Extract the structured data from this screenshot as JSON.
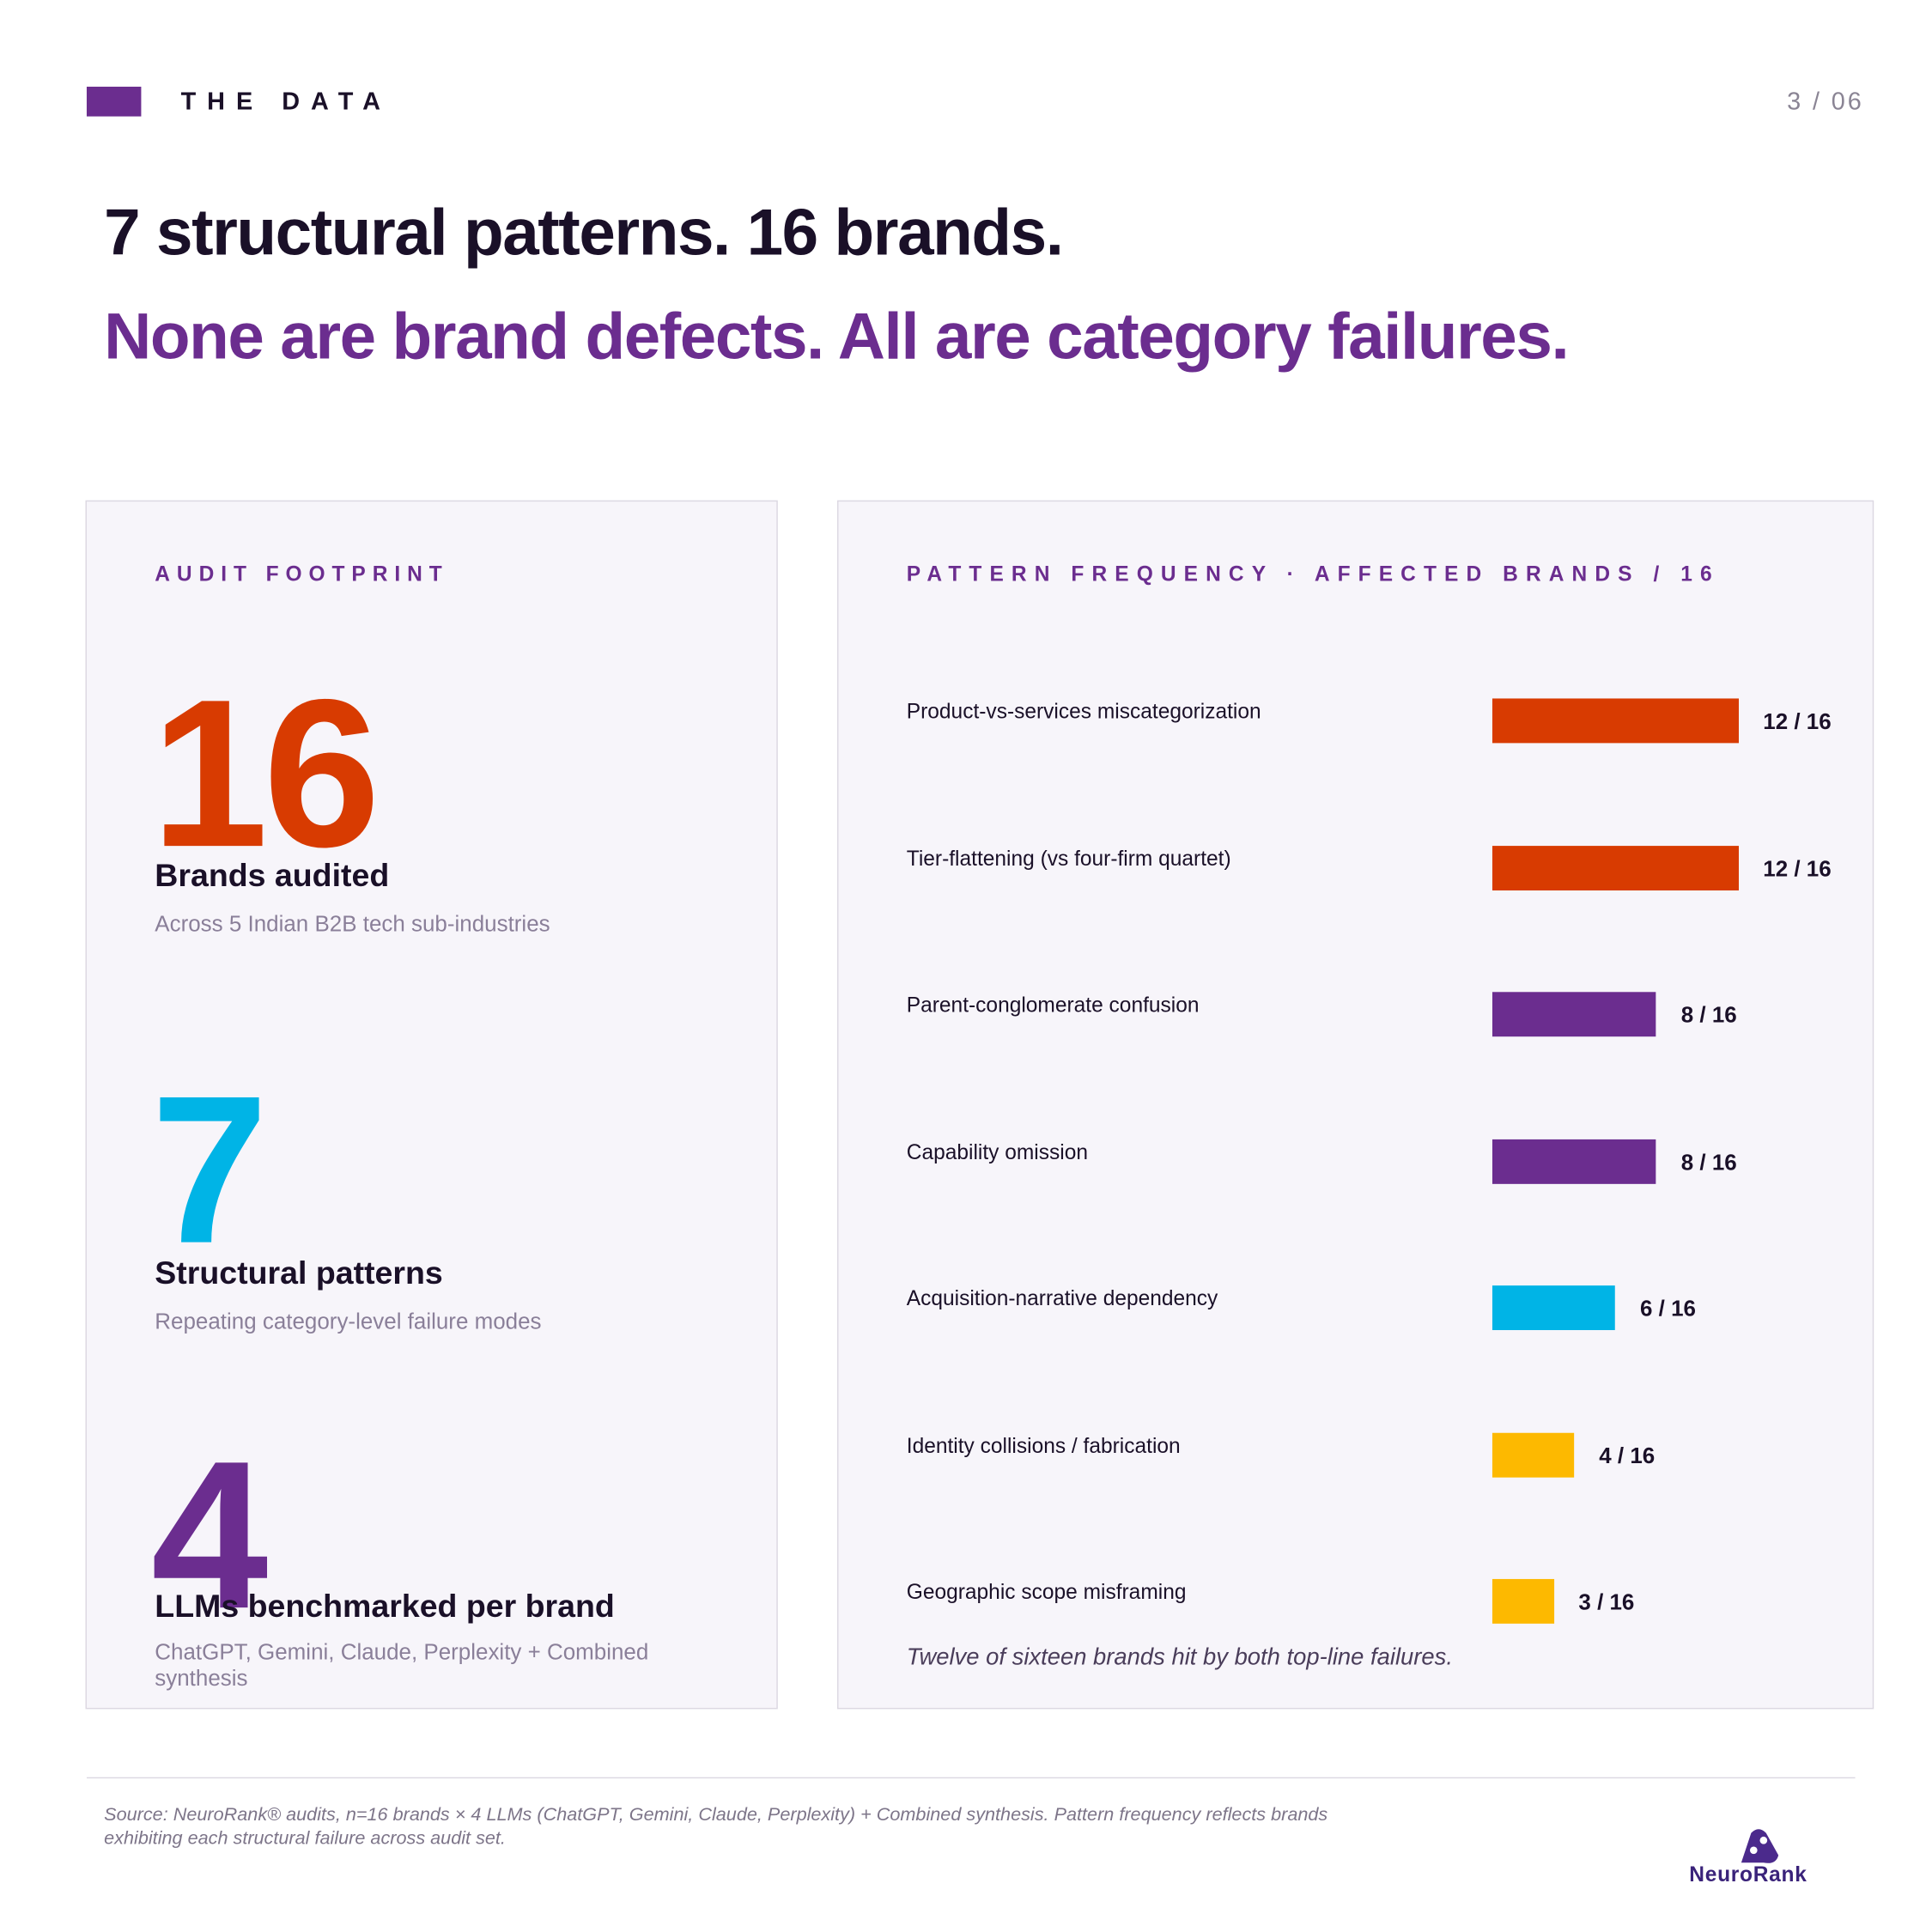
{
  "header": {
    "section": "THE DATA",
    "page": "3 / 06"
  },
  "title": "7 structural patterns. 16 brands.",
  "subtitle": "None are brand defects. All are category failures.",
  "audit_footprint": {
    "heading": "AUDIT FOOTPRINT",
    "stats": [
      {
        "value": 16,
        "color": "#d83b01",
        "label": "Brands audited",
        "note": "Across 5 Indian B2B tech sub-industries"
      },
      {
        "value": 7,
        "color": "#00b4e6",
        "label": "Structural patterns",
        "note": "Repeating category-level failure modes"
      },
      {
        "value": 4,
        "color": "#6b2d8f",
        "label": "LLMs benchmarked per brand",
        "note": "ChatGPT, Gemini, Claude, Perplexity + Combined synthesis"
      }
    ]
  },
  "chart_data": {
    "type": "bar",
    "orientation": "horizontal",
    "title": "PATTERN FREQUENCY · AFFECTED BRANDS / 16",
    "categories": [
      "Product-vs-services miscategorization",
      "Tier-flattening (vs four-firm quartet)",
      "Parent-conglomerate confusion",
      "Capability omission",
      "Acquisition-narrative dependency",
      "Identity collisions / fabrication",
      "Geographic scope misframing"
    ],
    "values": [
      12,
      12,
      8,
      8,
      6,
      4,
      3
    ],
    "value_labels": [
      "12 / 16",
      "12 / 16",
      "8 / 16",
      "8 / 16",
      "6 / 16",
      "4 / 16",
      "3 / 16"
    ],
    "colors": [
      "#d83b01",
      "#d83b01",
      "#6b2d8f",
      "#6b2d8f",
      "#00b4e6",
      "#fdb900",
      "#fdb900"
    ],
    "annotation": "Twelve of sixteen brands hit by both top-line failures."
  },
  "footer": {
    "source": "Source: NeuroRank® audits, n=16 brands × 4 LLMs (ChatGPT, Gemini, Claude, Perplexity) + Combined synthesis. Pattern frequency reflects brands exhibiting each structural failure across audit set.",
    "logo": "NeuroRank"
  }
}
